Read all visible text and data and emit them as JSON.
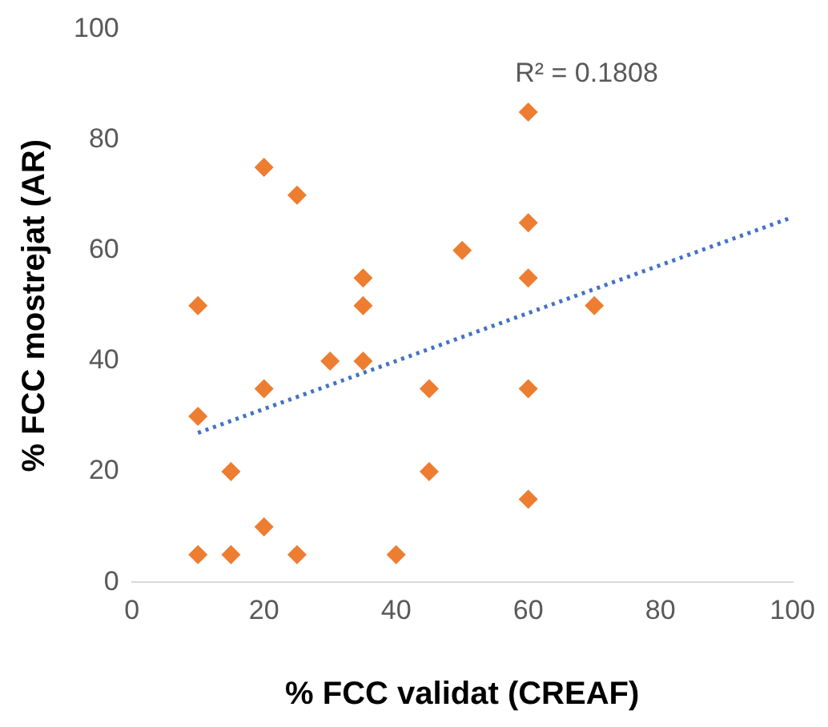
{
  "chart_data": {
    "type": "scatter",
    "xlabel": "% FCC validat (CREAF)",
    "ylabel": "% FCC mostrejat (AR)",
    "x": [
      10,
      10,
      10,
      15,
      15,
      20,
      20,
      20,
      25,
      25,
      30,
      35,
      35,
      35,
      40,
      45,
      45,
      50,
      60,
      60,
      60,
      60,
      60,
      70
    ],
    "series": [
      {
        "color": "#ed7d31",
        "marker": "diamond",
        "values": [
          50,
          30,
          5,
          20,
          5,
          75,
          35,
          10,
          70,
          5,
          40,
          55,
          50,
          40,
          5,
          35,
          20,
          60,
          85,
          65,
          55,
          35,
          15,
          50
        ]
      },
      {
        "type": "line",
        "color": "#4472c4",
        "line_style": "dotted",
        "marker": "none",
        "x": [
          10,
          100
        ],
        "values": [
          27,
          66
        ]
      }
    ],
    "xlim": [
      0,
      100
    ],
    "xticks": [
      0,
      20,
      40,
      60,
      80,
      100
    ],
    "ylim": [
      0,
      100
    ],
    "yticks": [
      0,
      20,
      40,
      60,
      80,
      100
    ],
    "grid": false,
    "legend": false,
    "annotations": [
      "R² = 0.1808"
    ]
  }
}
